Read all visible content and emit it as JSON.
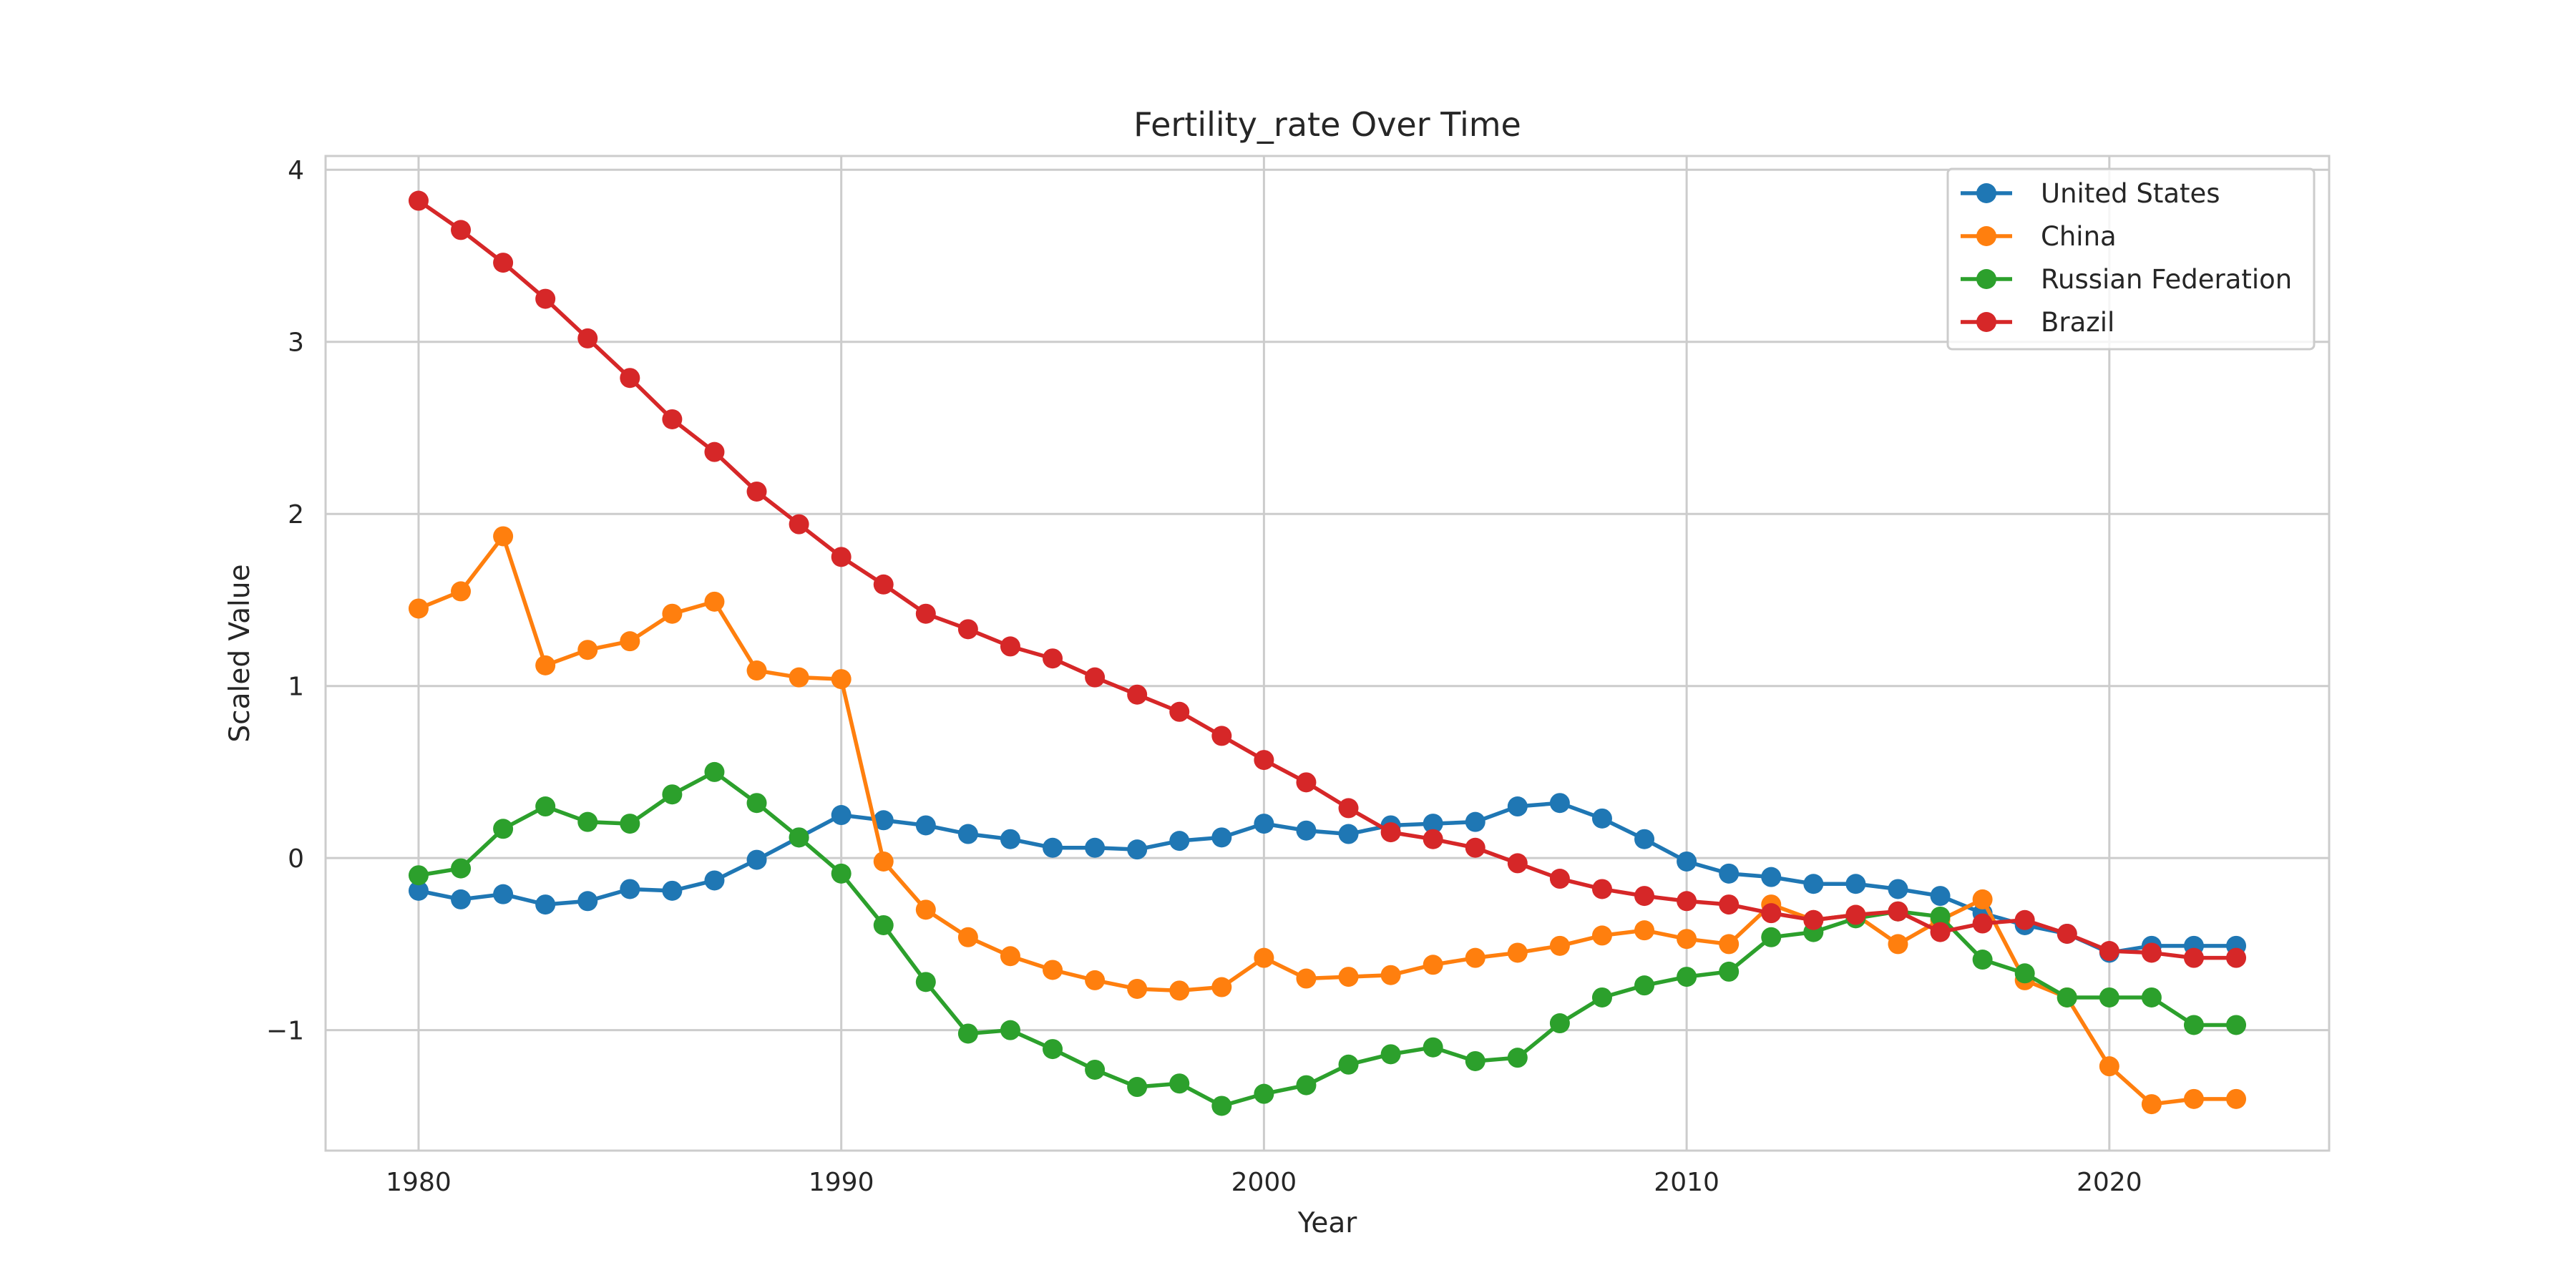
{
  "chart_data": {
    "type": "line",
    "title": "Fertility_rate Over Time",
    "xlabel": "Year",
    "ylabel": "Scaled Value",
    "xlim": [
      1977.8,
      2025.2
    ],
    "ylim": [
      -1.7,
      4.08
    ],
    "xticks": [
      1980,
      1990,
      2000,
      2010,
      2020
    ],
    "xtick_labels": [
      "1980",
      "1990",
      "2000",
      "2010",
      "2020"
    ],
    "yticks": [
      -1,
      0,
      1,
      2,
      3,
      4
    ],
    "ytick_labels": [
      "−1",
      "0",
      "1",
      "2",
      "3",
      "4"
    ],
    "grid": true,
    "legend_position": "top-right",
    "x": [
      1980,
      1981,
      1982,
      1983,
      1984,
      1985,
      1986,
      1987,
      1988,
      1989,
      1990,
      1991,
      1992,
      1993,
      1994,
      1995,
      1996,
      1997,
      1998,
      1999,
      2000,
      2001,
      2002,
      2003,
      2004,
      2005,
      2006,
      2007,
      2008,
      2009,
      2010,
      2011,
      2012,
      2013,
      2014,
      2015,
      2016,
      2017,
      2018,
      2019,
      2020,
      2021,
      2022,
      2023
    ],
    "series": [
      {
        "name": "United States",
        "color": "#1f77b4",
        "values": [
          -0.19,
          -0.24,
          -0.21,
          -0.27,
          -0.25,
          -0.18,
          -0.19,
          -0.13,
          -0.01,
          0.12,
          0.25,
          0.22,
          0.19,
          0.14,
          0.11,
          0.06,
          0.06,
          0.05,
          0.1,
          0.12,
          0.2,
          0.16,
          0.14,
          0.19,
          0.2,
          0.21,
          0.3,
          0.32,
          0.23,
          0.11,
          -0.02,
          -0.09,
          -0.11,
          -0.15,
          -0.15,
          -0.18,
          -0.22,
          -0.32,
          -0.39,
          -0.44,
          -0.55,
          -0.51,
          -0.51,
          -0.51
        ]
      },
      {
        "name": "China",
        "color": "#ff7f0e",
        "values": [
          1.45,
          1.55,
          1.87,
          1.12,
          1.21,
          1.26,
          1.42,
          1.49,
          1.09,
          1.05,
          1.04,
          -0.02,
          -0.3,
          -0.46,
          -0.57,
          -0.65,
          -0.71,
          -0.76,
          -0.77,
          -0.75,
          -0.58,
          -0.7,
          -0.69,
          -0.68,
          -0.62,
          -0.58,
          -0.55,
          -0.51,
          -0.45,
          -0.42,
          -0.47,
          -0.5,
          -0.27,
          -0.36,
          -0.33,
          -0.5,
          -0.36,
          -0.24,
          -0.71,
          -0.81,
          -1.21,
          -1.43,
          -1.4,
          -1.4
        ]
      },
      {
        "name": "Russian Federation",
        "color": "#2ca02c",
        "values": [
          -0.1,
          -0.06,
          0.17,
          0.3,
          0.21,
          0.2,
          0.37,
          0.5,
          0.32,
          0.12,
          -0.09,
          -0.39,
          -0.72,
          -1.02,
          -1.0,
          -1.11,
          -1.23,
          -1.33,
          -1.31,
          -1.44,
          -1.37,
          -1.32,
          -1.2,
          -1.14,
          -1.1,
          -1.18,
          -1.16,
          -0.96,
          -0.81,
          -0.74,
          -0.69,
          -0.66,
          -0.46,
          -0.43,
          -0.35,
          -0.31,
          -0.34,
          -0.59,
          -0.67,
          -0.81,
          -0.81,
          -0.81,
          -0.97,
          -0.97
        ]
      },
      {
        "name": "Brazil",
        "color": "#d62728",
        "values": [
          3.82,
          3.65,
          3.46,
          3.25,
          3.02,
          2.79,
          2.55,
          2.36,
          2.13,
          1.94,
          1.75,
          1.59,
          1.42,
          1.33,
          1.23,
          1.16,
          1.05,
          0.95,
          0.85,
          0.71,
          0.57,
          0.44,
          0.29,
          0.15,
          0.11,
          0.06,
          -0.03,
          -0.12,
          -0.18,
          -0.22,
          -0.25,
          -0.27,
          -0.32,
          -0.36,
          -0.33,
          -0.31,
          -0.43,
          -0.38,
          -0.36,
          -0.44,
          -0.54,
          -0.55,
          -0.58,
          -0.58
        ]
      }
    ]
  }
}
